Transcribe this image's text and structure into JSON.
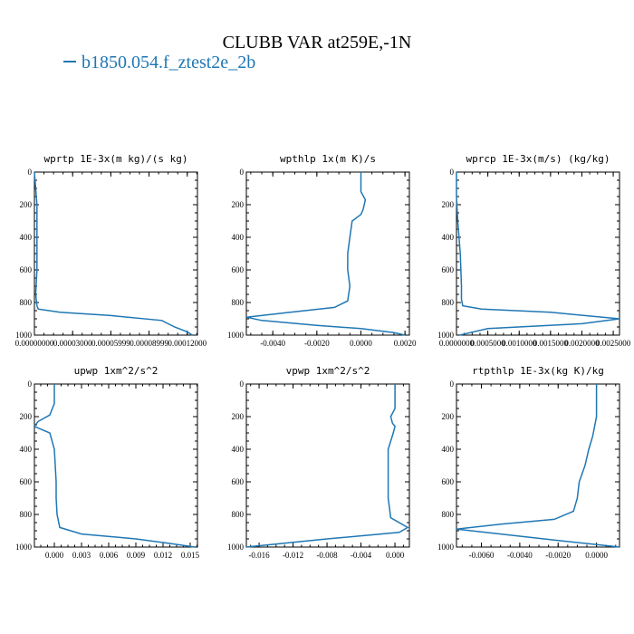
{
  "title": "CLUBB VAR at259E,-1N",
  "legend": {
    "label": "b1850.054.f_ztest2e_2b",
    "color": "#1f77b4"
  },
  "chart_data": [
    {
      "type": "line",
      "title": "wprtp  1E-3x(m kg)/(s kg)",
      "xlim": [
        0,
        0.000128
      ],
      "ylim": [
        1000,
        0
      ],
      "xticks": [
        0,
        3e-05,
        6e-05,
        9e-05,
        0.00012
      ],
      "xticklabels": [
        "0.00000000",
        "0.00003000",
        "0.00005999",
        "0.00008999",
        "0.00012000"
      ],
      "yticks": [
        0,
        200,
        400,
        600,
        800,
        1000
      ],
      "series": [
        {
          "x": [
            0,
            1e-06,
            2e-06,
            2e-06,
            2e-06,
            1e-06,
            2e-06,
            3e-06,
            2e-05,
            6e-05,
            0.0001,
            0.00011,
            0.00012,
            0.000124
          ],
          "y": [
            0,
            100,
            200,
            400,
            600,
            750,
            820,
            840,
            860,
            880,
            910,
            950,
            980,
            1000
          ]
        }
      ]
    },
    {
      "type": "line",
      "title": "wpthlp  1x(m K)/s",
      "xlim": [
        -0.0052,
        0.0022
      ],
      "ylim": [
        1000,
        0
      ],
      "xticks": [
        -0.004,
        -0.002,
        0.0,
        0.002
      ],
      "xticklabels": [
        "-0.0040",
        "-0.0020",
        "0.0000",
        "0.0020"
      ],
      "yticks": [
        0,
        200,
        400,
        600,
        800,
        1000
      ],
      "series": [
        {
          "x": [
            0.0,
            0.0,
            0.0002,
            0.0001,
            0.0,
            -0.0004,
            -0.0005,
            -0.0006,
            -0.0006,
            -0.0005,
            -0.0006,
            -0.0012,
            -0.0032,
            -0.0052,
            -0.0045,
            -0.002,
            0.0,
            0.0015,
            0.002
          ],
          "y": [
            0,
            120,
            170,
            230,
            260,
            300,
            400,
            500,
            600,
            700,
            790,
            830,
            860,
            890,
            910,
            940,
            960,
            985,
            1000
          ]
        }
      ]
    },
    {
      "type": "line",
      "title": "wprcp  1E-3x(m/s) (kg/kg)",
      "xlim": [
        0,
        0.0026
      ],
      "ylim": [
        1000,
        0
      ],
      "xticks": [
        0,
        0.0005,
        0.001,
        0.0015,
        0.002,
        0.0025
      ],
      "xticklabels": [
        "0.0000000",
        "0.0005000",
        "0.0010000",
        "0.0015000",
        "0.0020000",
        "0.0025000"
      ],
      "yticks": [
        0,
        200,
        400,
        600,
        800,
        1000
      ],
      "series": [
        {
          "x": [
            0,
            0,
            2e-05,
            6e-05,
            8e-05,
            8e-05,
            0.0001,
            0.0004,
            0.0015,
            0.0026,
            0.002,
            0.0005,
            5e-05
          ],
          "y": [
            0,
            150,
            300,
            500,
            700,
            780,
            820,
            840,
            860,
            900,
            930,
            960,
            1000
          ]
        }
      ]
    },
    {
      "type": "line",
      "title": "upwp  1xm^2/s^2",
      "xlim": [
        -0.0022,
        0.0158
      ],
      "ylim": [
        1000,
        0
      ],
      "xticks": [
        0,
        0.003,
        0.006,
        0.009,
        0.012,
        0.015
      ],
      "xticklabels": [
        "0.000",
        "0.003",
        "0.006",
        "0.009",
        "0.012",
        "0.015"
      ],
      "yticks": [
        0,
        200,
        400,
        600,
        800,
        1000
      ],
      "series": [
        {
          "x": [
            0,
            0,
            -0.0005,
            -0.0018,
            -0.0022,
            -0.0005,
            0,
            0.0001,
            0.0002,
            0.0002,
            0.0003,
            0.0006,
            0.003,
            0.009,
            0.013,
            0.0155
          ],
          "y": [
            0,
            120,
            190,
            230,
            260,
            300,
            400,
            500,
            600,
            700,
            800,
            880,
            920,
            950,
            980,
            1000
          ]
        }
      ]
    },
    {
      "type": "line",
      "title": "vpwp  1xm^2/s^2",
      "xlim": [
        -0.0175,
        0.0017
      ],
      "ylim": [
        1000,
        0
      ],
      "xticks": [
        -0.016,
        -0.012,
        -0.008,
        -0.004,
        0.0
      ],
      "xticklabels": [
        "-0.016",
        "-0.012",
        "-0.008",
        "-0.004",
        "0.000"
      ],
      "yticks": [
        0,
        200,
        400,
        600,
        800,
        1000
      ],
      "series": [
        {
          "x": [
            0,
            0,
            -0.0005,
            -0.0003,
            0,
            -0.0002,
            -0.0008,
            -0.0008,
            -0.0008,
            -0.0008,
            -0.0005,
            0.0015,
            0.0005,
            -0.008,
            -0.0175
          ],
          "y": [
            0,
            150,
            200,
            240,
            260,
            300,
            400,
            500,
            600,
            700,
            820,
            880,
            910,
            950,
            1000
          ]
        }
      ]
    },
    {
      "type": "line",
      "title": "rtpthlp  1E-3x(kg K)/kg",
      "xlim": [
        -0.0073,
        0.0012
      ],
      "ylim": [
        1000,
        0
      ],
      "xticks": [
        -0.006,
        -0.004,
        -0.002,
        0.0
      ],
      "xticklabels": [
        "-0.0060",
        "-0.0040",
        "-0.0020",
        "0.0000"
      ],
      "yticks": [
        0,
        200,
        400,
        600,
        800,
        1000
      ],
      "series": [
        {
          "x": [
            0,
            0,
            -0.0002,
            -0.0004,
            -0.0006,
            -0.0009,
            -0.001,
            -0.0012,
            -0.0022,
            -0.005,
            -0.0073,
            -0.005,
            -0.002,
            0.0,
            0.0012
          ],
          "y": [
            0,
            200,
            320,
            400,
            500,
            600,
            700,
            780,
            830,
            860,
            890,
            920,
            960,
            985,
            1000
          ]
        }
      ]
    }
  ]
}
